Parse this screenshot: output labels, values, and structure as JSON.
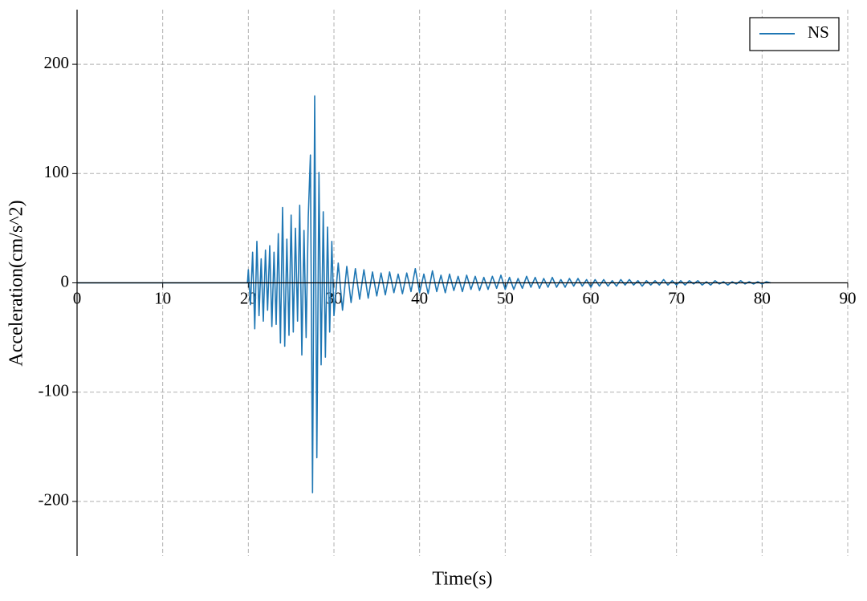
{
  "chart_data": {
    "type": "line",
    "x_label": "Time(s)",
    "y_label": "Acceleration(cm/s^2)",
    "x": [
      0,
      19.9,
      20,
      20.25,
      20.5,
      20.75,
      21,
      21.25,
      21.5,
      21.75,
      22,
      22.25,
      22.5,
      22.75,
      23,
      23.25,
      23.5,
      23.75,
      24,
      24.25,
      24.5,
      24.75,
      25,
      25.25,
      25.5,
      25.75,
      26,
      26.25,
      26.5,
      26.75,
      27,
      27.25,
      27.5,
      27.75,
      28,
      28.25,
      28.5,
      28.75,
      29,
      29.25,
      29.5,
      29.75,
      30,
      30.5,
      31,
      31.5,
      32,
      32.5,
      33,
      33.5,
      34,
      34.5,
      35,
      35.5,
      36,
      36.5,
      37,
      37.5,
      38,
      38.5,
      39,
      39.5,
      40,
      40.5,
      41,
      41.5,
      42,
      42.5,
      43,
      43.5,
      44,
      44.5,
      45,
      45.5,
      46,
      46.5,
      47,
      47.5,
      48,
      48.5,
      49,
      49.5,
      50,
      50.5,
      51,
      51.5,
      52,
      52.5,
      53,
      53.5,
      54,
      54.5,
      55,
      55.5,
      56,
      56.5,
      57,
      57.5,
      58,
      58.5,
      59,
      59.5,
      60,
      60.5,
      61,
      61.5,
      62,
      62.5,
      63,
      63.5,
      64,
      64.5,
      65,
      65.5,
      66,
      66.5,
      67,
      67.5,
      68,
      68.5,
      69,
      69.5,
      70,
      70.5,
      71,
      71.5,
      72,
      72.5,
      73,
      73.5,
      74,
      74.5,
      75,
      75.5,
      76,
      76.5,
      77,
      77.5,
      78,
      78.5,
      79,
      79.5,
      80,
      80.5,
      81
    ],
    "series": [
      {
        "name": "NS",
        "color": "#1f77b4",
        "values": [
          0,
          0,
          12,
          -20,
          28,
          -42,
          38,
          -30,
          22,
          -35,
          30,
          -25,
          34,
          -40,
          28,
          -38,
          45,
          -55,
          69,
          -58,
          40,
          -48,
          62,
          -45,
          50,
          -35,
          71,
          -66,
          48,
          -50,
          60,
          117,
          -192,
          171,
          -160,
          101,
          -75,
          65,
          -68,
          51,
          -45,
          38,
          -30,
          18,
          -25,
          15,
          -18,
          13,
          -15,
          12,
          -14,
          10,
          -12,
          9,
          -11,
          10,
          -9,
          8,
          -10,
          9,
          -8,
          13,
          -9,
          8,
          -10,
          11,
          -8,
          7,
          -9,
          8,
          -7,
          6,
          -8,
          7,
          -6,
          6,
          -7,
          5,
          -6,
          6,
          -5,
          7,
          -6,
          5,
          -6,
          4,
          -5,
          6,
          -4,
          5,
          -5,
          4,
          -4,
          5,
          -4,
          3,
          -4,
          4,
          -3,
          4,
          -3,
          3,
          -4,
          3,
          -3,
          3,
          -3,
          2,
          -3,
          3,
          -2,
          3,
          -2,
          2,
          -3,
          2,
          -2,
          2,
          -2,
          3,
          -2,
          2,
          -2,
          2,
          -2,
          2,
          -1,
          2,
          -2,
          1,
          -2,
          2,
          -1,
          1,
          -2,
          1,
          -1,
          2,
          -1,
          1,
          -1,
          1,
          -1,
          1,
          0
        ]
      }
    ],
    "xlim": [
      0,
      90
    ],
    "xticks": [
      0,
      10,
      20,
      30,
      40,
      50,
      60,
      70,
      80,
      90
    ],
    "ylim": [
      -250,
      250
    ],
    "yticks": [
      -200,
      -100,
      0,
      100,
      200
    ],
    "grid": true,
    "legend": "upper right"
  }
}
